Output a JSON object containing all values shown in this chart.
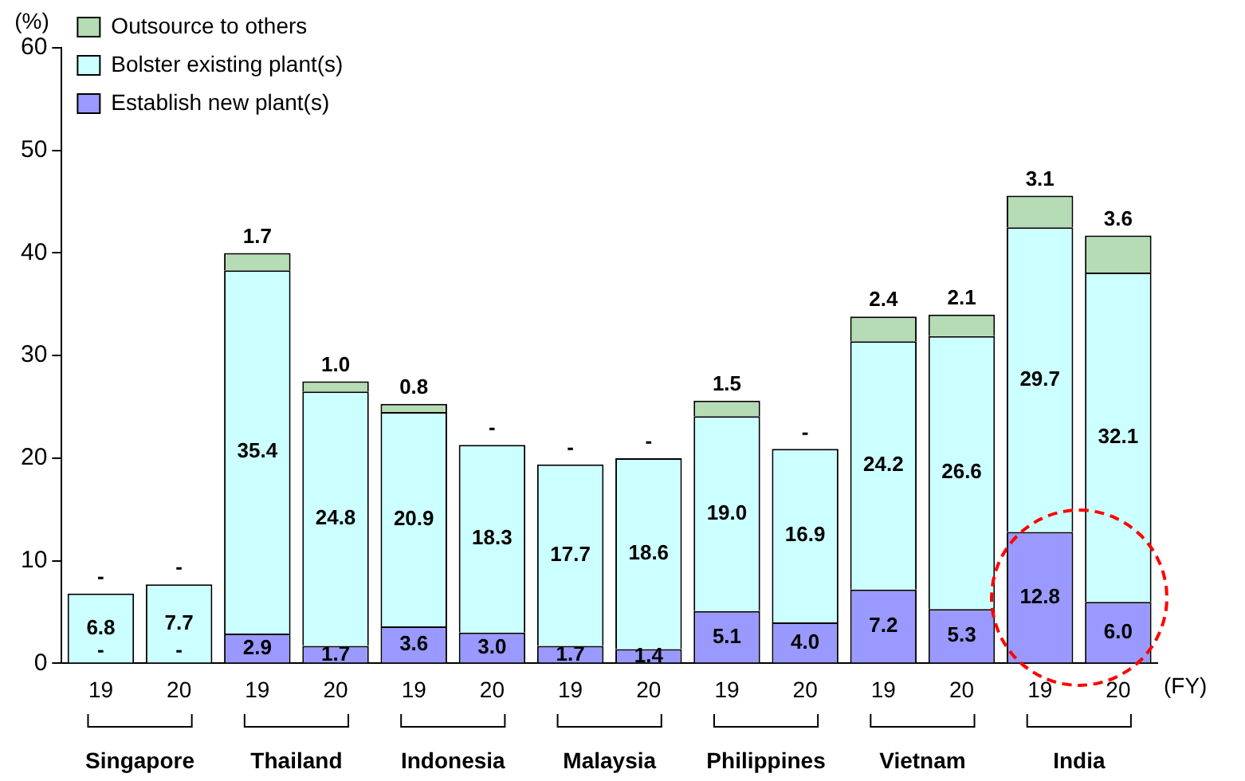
{
  "chart_data": {
    "type": "bar",
    "stacked": true,
    "ylabel": "(%)",
    "xlabel": "(FY)",
    "categories": [
      "19",
      "20",
      "19",
      "20",
      "19",
      "20",
      "19",
      "20",
      "19",
      "20",
      "19",
      "20",
      "19",
      "20"
    ],
    "annotations": [
      "Singapore",
      "Thailand",
      "Indonesia",
      "Malaysia",
      "Philippines",
      "Vietnam",
      "India"
    ],
    "series": [
      {
        "name": "Establish new plant(s)",
        "color": "#9999ff",
        "values": [
          0,
          0,
          2.9,
          1.7,
          3.6,
          3.0,
          1.7,
          1.4,
          5.1,
          4.0,
          7.2,
          5.3,
          12.8,
          6.0
        ],
        "value_labels": [
          "-",
          "-",
          "2.9",
          "1.7",
          "3.6",
          "3.0",
          "1.7",
          "1.4",
          "5.1",
          "4.0",
          "7.2",
          "5.3",
          "12.8",
          "6.0"
        ]
      },
      {
        "name": "Bolster existing plant(s)",
        "color": "#ccffff",
        "values": [
          6.8,
          7.7,
          35.4,
          24.8,
          20.9,
          18.3,
          17.7,
          18.6,
          19.0,
          16.9,
          24.2,
          26.6,
          29.7,
          32.1
        ],
        "value_labels": [
          "6.8",
          "7.7",
          "35.4",
          "24.8",
          "20.9",
          "18.3",
          "17.7",
          "18.6",
          "19.0",
          "16.9",
          "24.2",
          "26.6",
          "29.7",
          "32.1"
        ]
      },
      {
        "name": "Outsource to others",
        "color": "#b5dcb5",
        "values": [
          0,
          0,
          1.7,
          1.0,
          0.8,
          0,
          0,
          0,
          1.5,
          0,
          2.4,
          2.1,
          3.1,
          3.6
        ],
        "value_labels": [
          "-",
          "-",
          "1.7",
          "1.0",
          "0.8",
          "-",
          "-",
          "-",
          "1.5",
          "-",
          "2.4",
          "2.1",
          "3.1",
          "3.6"
        ]
      }
    ],
    "ylim": [
      0,
      60
    ],
    "yticks": [
      0,
      10,
      20,
      30,
      40,
      50,
      60
    ],
    "grid": false,
    "legend": "top left"
  }
}
